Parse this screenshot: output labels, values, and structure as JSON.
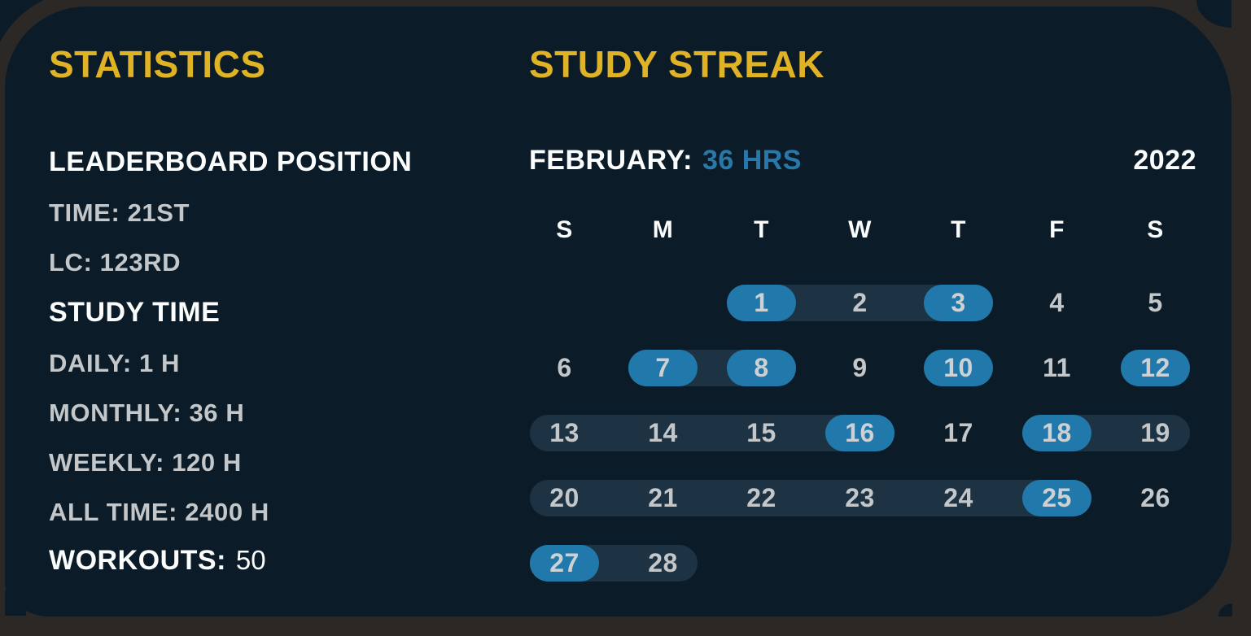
{
  "colors": {
    "navy": "#0b1c28",
    "frame_gray": "#2c2826",
    "accent_yellow": "#e0b226",
    "accent_blue_text": "#2878a9",
    "day_highlight_blue": "#2179ab",
    "streak_pill_bg": "#1d3242",
    "gray_text": "#c4c7c9"
  },
  "statistics": {
    "title": "STATISTICS",
    "leaderboard": {
      "heading": "LEADERBOARD POSITION",
      "rows": [
        "TIME: 21ST",
        "LC: 123RD"
      ]
    },
    "study_time": {
      "heading": "STUDY TIME",
      "rows": [
        "DAILY: 1 H",
        "MONTHLY: 36 H",
        "WEEKLY: 120 H",
        "ALL TIME: 2400 H"
      ]
    },
    "workouts": {
      "label": "WORKOUTS:",
      "value": "50"
    }
  },
  "study_streak": {
    "title": "STUDY STREAK",
    "month_label": "FEBRUARY:",
    "month_hours": "36 HRS",
    "year": "2022",
    "day_headers": [
      "S",
      "M",
      "T",
      "W",
      "T",
      "F",
      "S"
    ],
    "weeks": [
      {
        "streaks": [
          [
            2,
            4
          ]
        ],
        "days": [
          {
            "d": 1,
            "c": 2,
            "hl": true
          },
          {
            "d": 2,
            "c": 3,
            "hl": false
          },
          {
            "d": 3,
            "c": 4,
            "hl": true
          },
          {
            "d": 4,
            "c": 5,
            "hl": false
          },
          {
            "d": 5,
            "c": 6,
            "hl": false
          }
        ]
      },
      {
        "streaks": [
          [
            1,
            2
          ]
        ],
        "days": [
          {
            "d": 6,
            "c": 0,
            "hl": false
          },
          {
            "d": 7,
            "c": 1,
            "hl": true
          },
          {
            "d": 8,
            "c": 2,
            "hl": true
          },
          {
            "d": 9,
            "c": 3,
            "hl": false
          },
          {
            "d": 10,
            "c": 4,
            "hl": true
          },
          {
            "d": 11,
            "c": 5,
            "hl": false
          },
          {
            "d": 12,
            "c": 6,
            "hl": true
          }
        ]
      },
      {
        "streaks": [
          [
            0,
            3
          ],
          [
            5,
            6
          ]
        ],
        "days": [
          {
            "d": 13,
            "c": 0,
            "hl": false
          },
          {
            "d": 14,
            "c": 1,
            "hl": false
          },
          {
            "d": 15,
            "c": 2,
            "hl": false
          },
          {
            "d": 16,
            "c": 3,
            "hl": true
          },
          {
            "d": 17,
            "c": 4,
            "hl": false
          },
          {
            "d": 18,
            "c": 5,
            "hl": true
          },
          {
            "d": 19,
            "c": 6,
            "hl": false
          }
        ]
      },
      {
        "streaks": [
          [
            0,
            5
          ]
        ],
        "days": [
          {
            "d": 20,
            "c": 0,
            "hl": false
          },
          {
            "d": 21,
            "c": 1,
            "hl": false
          },
          {
            "d": 22,
            "c": 2,
            "hl": false
          },
          {
            "d": 23,
            "c": 3,
            "hl": false
          },
          {
            "d": 24,
            "c": 4,
            "hl": false
          },
          {
            "d": 25,
            "c": 5,
            "hl": true
          },
          {
            "d": 26,
            "c": 6,
            "hl": false
          }
        ]
      },
      {
        "streaks": [
          [
            0,
            1
          ]
        ],
        "days": [
          {
            "d": 27,
            "c": 0,
            "hl": true
          },
          {
            "d": 28,
            "c": 1,
            "hl": false
          }
        ]
      }
    ]
  }
}
